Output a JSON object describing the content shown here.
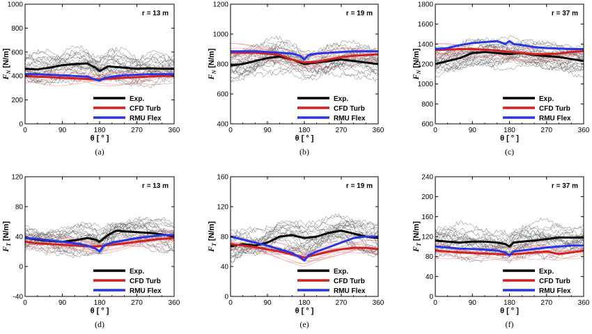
{
  "colors": {
    "exp": "#000000",
    "cfd": "#d42020",
    "rmu": "#2a36e6",
    "exp_runs": "#6f6f6f",
    "cfd_runs": "#f0a8a8"
  },
  "legend": {
    "exp": "Exp.",
    "cfd": "CFD Turb",
    "rmu": "RMU Flex"
  },
  "chart_data": [
    {
      "type": "line",
      "caption": "(a)",
      "annotation": "r = 13 m",
      "ylabel_main": "F",
      "ylabel_sub": "N",
      "ylabel_unit": " [N/m]",
      "xlabel": "θ [ ° ]",
      "xlim": [
        0,
        360
      ],
      "xticks": [
        0,
        90,
        180,
        270,
        360
      ],
      "ylim": [
        0,
        1000
      ],
      "yticks": [
        0,
        200,
        400,
        600,
        800,
        1000
      ],
      "series": [
        {
          "name": "Exp.",
          "x": [
            0,
            30,
            60,
            90,
            120,
            150,
            170,
            180,
            200,
            240,
            270,
            300,
            330,
            360
          ],
          "y": [
            460,
            455,
            470,
            490,
            500,
            505,
            470,
            440,
            480,
            470,
            460,
            465,
            460,
            460
          ]
        },
        {
          "name": "CFD Turb",
          "x": [
            0,
            30,
            60,
            90,
            120,
            150,
            175,
            200,
            240,
            270,
            300,
            330,
            360
          ],
          "y": [
            400,
            395,
            390,
            385,
            380,
            375,
            370,
            378,
            385,
            390,
            395,
            400,
            400
          ]
        },
        {
          "name": "RMU Flex",
          "x": [
            0,
            30,
            60,
            90,
            120,
            150,
            170,
            180,
            190,
            210,
            240,
            270,
            300,
            330,
            360
          ],
          "y": [
            415,
            415,
            410,
            405,
            400,
            395,
            370,
            360,
            380,
            395,
            405,
            410,
            415,
            415,
            415
          ]
        }
      ]
    },
    {
      "type": "line",
      "caption": "(b)",
      "annotation": "r = 19 m",
      "ylabel_main": "F",
      "ylabel_sub": "N",
      "ylabel_unit": " [N/m]",
      "xlabel": "θ [ ° ]",
      "xlim": [
        0,
        360
      ],
      "xticks": [
        0,
        90,
        180,
        270,
        360
      ],
      "ylim": [
        400,
        1200
      ],
      "yticks": [
        400,
        600,
        800,
        1000,
        1200
      ],
      "series": [
        {
          "name": "Exp.",
          "x": [
            0,
            30,
            60,
            90,
            120,
            150,
            180,
            210,
            240,
            270,
            300,
            330,
            360
          ],
          "y": [
            790,
            800,
            820,
            840,
            850,
            830,
            800,
            810,
            820,
            830,
            820,
            810,
            800
          ]
        },
        {
          "name": "CFD Turb",
          "x": [
            0,
            30,
            60,
            90,
            120,
            150,
            180,
            210,
            240,
            270,
            300,
            330,
            360
          ],
          "y": [
            875,
            875,
            875,
            870,
            860,
            830,
            810,
            815,
            830,
            845,
            855,
            860,
            865
          ]
        },
        {
          "name": "RMU Flex",
          "x": [
            0,
            30,
            60,
            90,
            120,
            150,
            170,
            180,
            190,
            210,
            240,
            270,
            300,
            330,
            360
          ],
          "y": [
            885,
            885,
            885,
            880,
            875,
            870,
            855,
            830,
            860,
            870,
            875,
            880,
            885,
            885,
            885
          ]
        }
      ]
    },
    {
      "type": "line",
      "caption": "(c)",
      "annotation": "r = 37 m",
      "ylabel_main": "F",
      "ylabel_sub": "N",
      "ylabel_unit": " [N/m]",
      "xlabel": "θ [ ° ]",
      "xlim": [
        0,
        360
      ],
      "xticks": [
        0,
        90,
        180,
        270,
        360
      ],
      "ylim": [
        600,
        1800
      ],
      "yticks": [
        600,
        800,
        1000,
        1200,
        1400,
        1600,
        1800
      ],
      "series": [
        {
          "name": "Exp.",
          "x": [
            0,
            30,
            60,
            90,
            120,
            150,
            180,
            210,
            240,
            270,
            300,
            330,
            360
          ],
          "y": [
            1200,
            1230,
            1260,
            1310,
            1320,
            1310,
            1300,
            1310,
            1290,
            1280,
            1270,
            1250,
            1230
          ]
        },
        {
          "name": "CFD Turb",
          "x": [
            0,
            30,
            60,
            90,
            120,
            150,
            180,
            210,
            240,
            270,
            300,
            330,
            360
          ],
          "y": [
            1340,
            1345,
            1350,
            1350,
            1345,
            1335,
            1320,
            1310,
            1300,
            1300,
            1305,
            1320,
            1330
          ]
        },
        {
          "name": "RMU Flex",
          "x": [
            0,
            30,
            60,
            90,
            120,
            150,
            170,
            180,
            190,
            210,
            240,
            270,
            300,
            330,
            360
          ],
          "y": [
            1350,
            1360,
            1390,
            1410,
            1420,
            1430,
            1400,
            1430,
            1400,
            1390,
            1370,
            1360,
            1355,
            1350,
            1350
          ]
        }
      ]
    },
    {
      "type": "line",
      "caption": "(d)",
      "annotation": "r = 13 m",
      "ylabel_main": "F",
      "ylabel_sub": "T",
      "ylabel_unit": " [N/m]",
      "xlabel": "θ [ ° ]",
      "xlim": [
        0,
        360
      ],
      "xticks": [
        0,
        90,
        180,
        270,
        360
      ],
      "ylim": [
        -40,
        120
      ],
      "yticks": [
        -40,
        0,
        40,
        80,
        120
      ],
      "series": [
        {
          "name": "Exp.",
          "x": [
            0,
            30,
            60,
            90,
            120,
            150,
            170,
            180,
            200,
            220,
            240,
            270,
            300,
            330,
            360
          ],
          "y": [
            38,
            36,
            34,
            33,
            35,
            38,
            36,
            33,
            42,
            48,
            47,
            46,
            45,
            43,
            40
          ]
        },
        {
          "name": "CFD Turb",
          "x": [
            0,
            30,
            60,
            90,
            120,
            150,
            180,
            210,
            240,
            270,
            300,
            330,
            360
          ],
          "y": [
            33,
            31,
            30,
            29,
            28,
            27,
            27,
            29,
            31,
            33,
            35,
            37,
            38
          ]
        },
        {
          "name": "RMU Flex",
          "x": [
            0,
            30,
            60,
            90,
            120,
            150,
            170,
            180,
            190,
            210,
            240,
            270,
            300,
            330,
            360
          ],
          "y": [
            38,
            37,
            35,
            33,
            31,
            28,
            24,
            20,
            28,
            32,
            35,
            38,
            40,
            42,
            42
          ]
        }
      ]
    },
    {
      "type": "line",
      "caption": "(e)",
      "annotation": "r = 19 m",
      "ylabel_main": "F",
      "ylabel_sub": "T",
      "ylabel_unit": " [N/m]",
      "xlabel": "θ [ ° ]",
      "xlim": [
        0,
        360
      ],
      "xticks": [
        0,
        90,
        180,
        270,
        360
      ],
      "ylim": [
        0,
        160
      ],
      "yticks": [
        0,
        40,
        80,
        120,
        160
      ],
      "series": [
        {
          "name": "Exp.",
          "x": [
            0,
            30,
            60,
            90,
            120,
            150,
            180,
            210,
            240,
            270,
            300,
            330,
            360
          ],
          "y": [
            67,
            70,
            68,
            72,
            80,
            82,
            78,
            80,
            85,
            88,
            84,
            80,
            78
          ]
        },
        {
          "name": "CFD Turb",
          "x": [
            0,
            30,
            60,
            90,
            120,
            150,
            180,
            210,
            240,
            270,
            300,
            330,
            360
          ],
          "y": [
            70,
            68,
            66,
            63,
            60,
            56,
            52,
            56,
            60,
            63,
            65,
            65,
            63
          ]
        },
        {
          "name": "RMU Flex",
          "x": [
            0,
            30,
            60,
            90,
            120,
            150,
            170,
            180,
            190,
            210,
            240,
            270,
            300,
            330,
            360
          ],
          "y": [
            80,
            76,
            72,
            68,
            63,
            58,
            52,
            48,
            55,
            60,
            66,
            72,
            78,
            80,
            80
          ]
        }
      ]
    },
    {
      "type": "line",
      "caption": "(f)",
      "annotation": "r = 37 m",
      "ylabel_main": "F",
      "ylabel_sub": "T",
      "ylabel_unit": " [N/m]",
      "xlabel": "θ [ ° ]",
      "xlim": [
        0,
        360
      ],
      "xticks": [
        0,
        90,
        180,
        270,
        360
      ],
      "ylim": [
        0,
        240
      ],
      "yticks": [
        0,
        40,
        80,
        120,
        160,
        200,
        240
      ],
      "series": [
        {
          "name": "Exp.",
          "x": [
            0,
            30,
            60,
            90,
            120,
            150,
            170,
            180,
            190,
            210,
            240,
            270,
            300,
            330,
            360
          ],
          "y": [
            112,
            110,
            108,
            110,
            110,
            108,
            105,
            100,
            108,
            110,
            112,
            115,
            118,
            118,
            118
          ]
        },
        {
          "name": "CFD Turb",
          "x": [
            0,
            30,
            60,
            90,
            120,
            150,
            180,
            210,
            240,
            270,
            300,
            330,
            360
          ],
          "y": [
            92,
            90,
            88,
            87,
            86,
            85,
            84,
            86,
            88,
            90,
            85,
            88,
            92
          ]
        },
        {
          "name": "RMU Flex",
          "x": [
            0,
            30,
            60,
            90,
            120,
            150,
            170,
            180,
            190,
            210,
            240,
            270,
            300,
            330,
            360
          ],
          "y": [
            100,
            98,
            96,
            95,
            94,
            92,
            88,
            82,
            90,
            92,
            95,
            98,
            100,
            102,
            102
          ]
        }
      ]
    }
  ]
}
